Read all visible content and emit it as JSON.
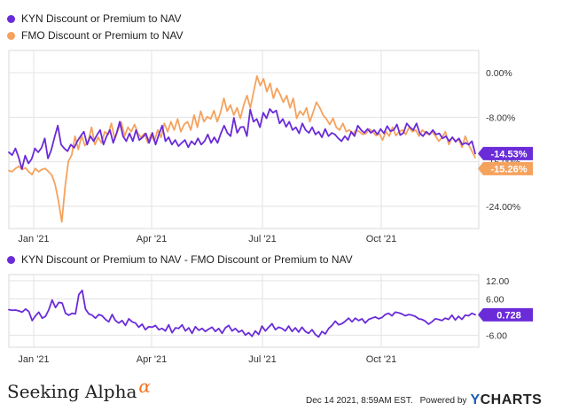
{
  "legend": {
    "series1": "KYN Discount or Premium to NAV",
    "series2": "FMO Discount or Premium to NAV",
    "series3": "KYN Discount or Premium to NAV - FMO Discount or Premium to NAV"
  },
  "colors": {
    "kyn": "#6a2bd8",
    "fmo": "#f5a25d",
    "grid": "#e3e3e3",
    "border": "#d8d8d8",
    "axis_text": "#333333"
  },
  "footer": {
    "brand_left": "Seeking Alpha",
    "alpha_glyph": "α",
    "timestamp": "Dec 14 2021, 8:59AM EST.",
    "powered": "Powered by",
    "brand_right": "YCHARTS"
  },
  "chart_data": [
    {
      "type": "line",
      "x_ticks": [
        "Jan '21",
        "Apr '21",
        "Jul '21",
        "Oct '21"
      ],
      "y_ticks": [
        "0.00%",
        "-8.00%",
        "-16.00%",
        "-24.00%"
      ],
      "y_tick_values": [
        0,
        -8,
        -16,
        -24
      ],
      "ylim": [
        -28,
        4
      ],
      "series": [
        {
          "name": "KYN Discount or Premium to NAV",
          "end_label": "-14.53%",
          "values": [
            -14.3,
            -14.8,
            -13.6,
            -15.2,
            -17.3,
            -14.9,
            -16.3,
            -15.5,
            -13.6,
            -14.3,
            -13.5,
            -11.8,
            -15.4,
            -13.9,
            -11.6,
            -9.5,
            -12.9,
            -13.6,
            -14.1,
            -12.9,
            -13.5,
            -12.3,
            -11.4,
            -10.6,
            -12.9,
            -11.4,
            -12.3,
            -11.2,
            -10.3,
            -12.9,
            -11.4,
            -10.3,
            -12.6,
            -10.9,
            -8.8,
            -11.4,
            -12.3,
            -10.9,
            -12.3,
            -10.3,
            -12.1,
            -11.6,
            -10.9,
            -12.6,
            -10.8,
            -12.9,
            -11.1,
            -9.5,
            -12.3,
            -11.6,
            -12.9,
            -12.1,
            -13.2,
            -12.6,
            -12.1,
            -13.4,
            -12.3,
            -12.9,
            -11.8,
            -12.9,
            -12.3,
            -11.1,
            -12.6,
            -11.6,
            -12.6,
            -10.9,
            -9.5,
            -10.8,
            -11.4,
            -8.1,
            -10.8,
            -9.8,
            -9.7,
            -11.4,
            -6.6,
            -8.8,
            -8.3,
            -9.8,
            -7.2,
            -8.2,
            -6.5,
            -7.2,
            -6.8,
            -9.1,
            -8.3,
            -9.7,
            -8.8,
            -10.3,
            -9.8,
            -10.9,
            -9.1,
            -10.3,
            -10.8,
            -9.8,
            -11.1,
            -10.6,
            -11.6,
            -10.1,
            -11.4,
            -10.8,
            -11.1,
            -11.8,
            -12.3,
            -11.4,
            -12.1,
            -10.6,
            -11.4,
            -9.5,
            -10.3,
            -10.8,
            -10.1,
            -10.8,
            -10.3,
            -11.1,
            -10.1,
            -10.9,
            -9.6,
            -10.5,
            -10.3,
            -9.3,
            -11.2,
            -10.8,
            -9.1,
            -9.8,
            -10.3,
            -9.1,
            -10.9,
            -11.4,
            -10.6,
            -11.1,
            -10.3,
            -11.1,
            -10.9,
            -11.8,
            -11.4,
            -12.3,
            -11.6,
            -12.4,
            -11.8,
            -12.9,
            -12.6,
            -12.9,
            -12.3,
            -14.53
          ]
        },
        {
          "name": "FMO Discount or Premium to NAV",
          "end_label": "-15.26%",
          "values": [
            -17.6,
            -17.8,
            -17.2,
            -16.8,
            -17.4,
            -17.1,
            -17.8,
            -18.3,
            -17.2,
            -17.8,
            -17.4,
            -17.2,
            -17.8,
            -18.4,
            -20.1,
            -23.1,
            -26.8,
            -20.6,
            -15.9,
            -14.8,
            -11.4,
            -13.8,
            -11.3,
            -13.1,
            -12.3,
            -9.8,
            -12.9,
            -11.6,
            -12.6,
            -10.6,
            -11.1,
            -9.1,
            -11.9,
            -10.3,
            -8.9,
            -11.4,
            -9.8,
            -10.6,
            -9.3,
            -10.9,
            -11.6,
            -10.9,
            -12.6,
            -11.1,
            -12.3,
            -10.3,
            -11.6,
            -9.1,
            -10.6,
            -8.8,
            -10.3,
            -8.3,
            -10.6,
            -9.3,
            -8.8,
            -10.3,
            -7.6,
            -9.8,
            -6.9,
            -8.8,
            -7.9,
            -8.3,
            -6.8,
            -8.8,
            -7.1,
            -4.6,
            -6.9,
            -5.8,
            -7.6,
            -6.3,
            -8.2,
            -5.8,
            -4.1,
            -6.3,
            -3.4,
            -0.6,
            -2.3,
            -1.1,
            -3.4,
            -1.9,
            -4.6,
            -2.8,
            -3.9,
            -5.3,
            -4.1,
            -6.3,
            -4.6,
            -8.2,
            -6.9,
            -7.6,
            -6.3,
            -8.8,
            -7.1,
            -5.3,
            -6.3,
            -7.6,
            -8.3,
            -9.3,
            -8.2,
            -9.8,
            -10.3,
            -9.1,
            -10.6,
            -10.3,
            -11.1,
            -10.3,
            -10.6,
            -11.1,
            -10.9,
            -10.1,
            -10.6,
            -11.3,
            -10.9,
            -12.1,
            -10.6,
            -11.4,
            -9.8,
            -11.3,
            -10.6,
            -10.3,
            -11.1,
            -9.8,
            -10.6,
            -10.3,
            -11.4,
            -10.3,
            -10.8,
            -11.1,
            -10.6,
            -11.4,
            -12.3,
            -11.6,
            -10.6,
            -12.9,
            -11.6,
            -12.3,
            -11.9,
            -13.4,
            -11.4,
            -12.9,
            -14.1,
            -15.26
          ]
        }
      ]
    },
    {
      "type": "line",
      "x_ticks": [
        "Jan '21",
        "Apr '21",
        "Jul '21",
        "Oct '21"
      ],
      "y_ticks": [
        "12.00",
        "6.00",
        "-6.00"
      ],
      "y_tick_values": [
        12,
        6,
        -6
      ],
      "ylim": [
        -10,
        14
      ],
      "series": [
        {
          "name": "KYN Discount or Premium to NAV - FMO Discount or Premium to NAV",
          "end_label": "0.728",
          "values": [
            2.4,
            2.2,
            2.3,
            2.0,
            1.6,
            2.6,
            1.8,
            -1.2,
            0.4,
            1.6,
            -0.4,
            0.2,
            2.4,
            5.6,
            3.1,
            4.8,
            4.6,
            1.2,
            0.6,
            1.2,
            1.0,
            7.4,
            8.8,
            2.6,
            1.0,
            0.6,
            -0.4,
            0.8,
            0.4,
            -0.8,
            -1.6,
            0.8,
            -1.2,
            -2.0,
            -1.2,
            -2.8,
            -0.6,
            -1.6,
            -2.0,
            -3.4,
            -2.4,
            -4.2,
            -3.2,
            -3.4,
            -2.8,
            -4.2,
            -3.8,
            -4.6,
            -2.6,
            -5.2,
            -3.6,
            -3.8,
            -2.6,
            -4.6,
            -3.6,
            -5.4,
            -3.2,
            -4.4,
            -3.8,
            -4.8,
            -4.0,
            -3.4,
            -4.8,
            -3.8,
            -5.4,
            -3.6,
            -2.8,
            -4.6,
            -3.8,
            -5.0,
            -4.4,
            -6.0,
            -5.2,
            -6.4,
            -4.6,
            -5.8,
            -3.0,
            -4.6,
            -3.4,
            -2.2,
            -4.2,
            -3.4,
            -3.8,
            -4.6,
            -3.0,
            -4.8,
            -3.6,
            -5.0,
            -3.4,
            -4.8,
            -5.4,
            -4.2,
            -5.8,
            -6.6,
            -4.8,
            -5.6,
            -3.8,
            -2.8,
            -1.4,
            -2.6,
            -2.2,
            -1.4,
            -0.4,
            -1.6,
            -0.4,
            -1.2,
            -0.6,
            -2.0,
            -0.8,
            -0.4,
            0.0,
            -0.6,
            -0.2,
            0.8,
            1.2,
            0.4,
            1.6,
            1.4,
            1.0,
            0.4,
            0.8,
            0.6,
            0.2,
            -0.6,
            -0.8,
            -1.4,
            -2.4,
            -1.6,
            -0.6,
            -0.8,
            -1.2,
            -0.4,
            -0.8,
            0.6,
            -1.0,
            0.2,
            -0.8,
            0.6,
            0.4,
            1.2,
            0.728
          ]
        }
      ]
    }
  ]
}
